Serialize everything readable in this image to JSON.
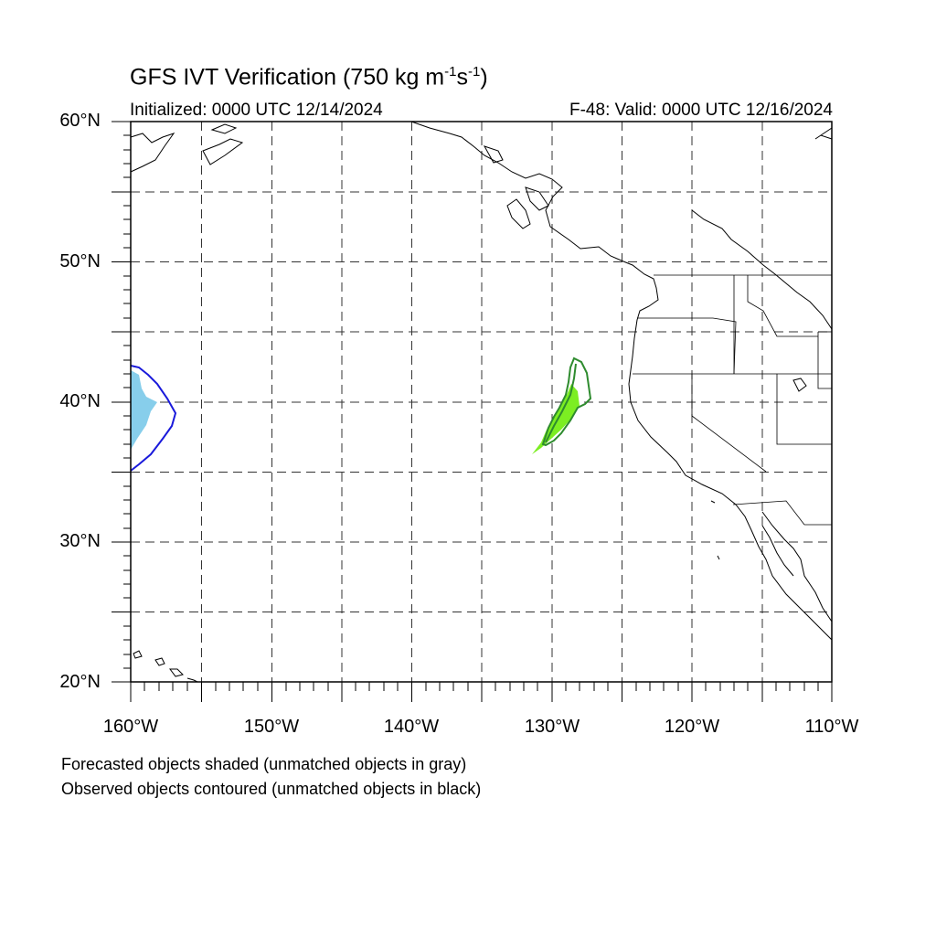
{
  "title": {
    "main": "GFS IVT Verification (750 kg m",
    "exp1": "-1",
    "mid": "s",
    "exp2": "-1",
    "end": ")"
  },
  "initialized": "Initialized: 0000 UTC 12/14/2024",
  "valid": "F-48: Valid: 0000 UTC 12/16/2024",
  "lat_labels": [
    "60°N",
    "50°N",
    "40°N",
    "30°N",
    "20°N"
  ],
  "lon_labels": [
    "160°W",
    "150°W",
    "140°W",
    "130°W",
    "120°W",
    "110°W"
  ],
  "notes": [
    "Forecasted objects shaded (unmatched objects in gray)",
    "Observed objects contoured (unmatched objects in black)"
  ],
  "map": {
    "extent": {
      "lon": [
        -160,
        -110
      ],
      "lat": [
        20,
        60
      ]
    },
    "grid_spacing_deg": 5,
    "colors": {
      "object1_forecast_fill": "#87ceeb",
      "object1_observed_contour": "#1a1adb",
      "object2_forecast_fill": "#7cee22",
      "object2_observed_contour": "#2e8b2e",
      "coastline": "#000000",
      "grid": "#333333"
    }
  }
}
